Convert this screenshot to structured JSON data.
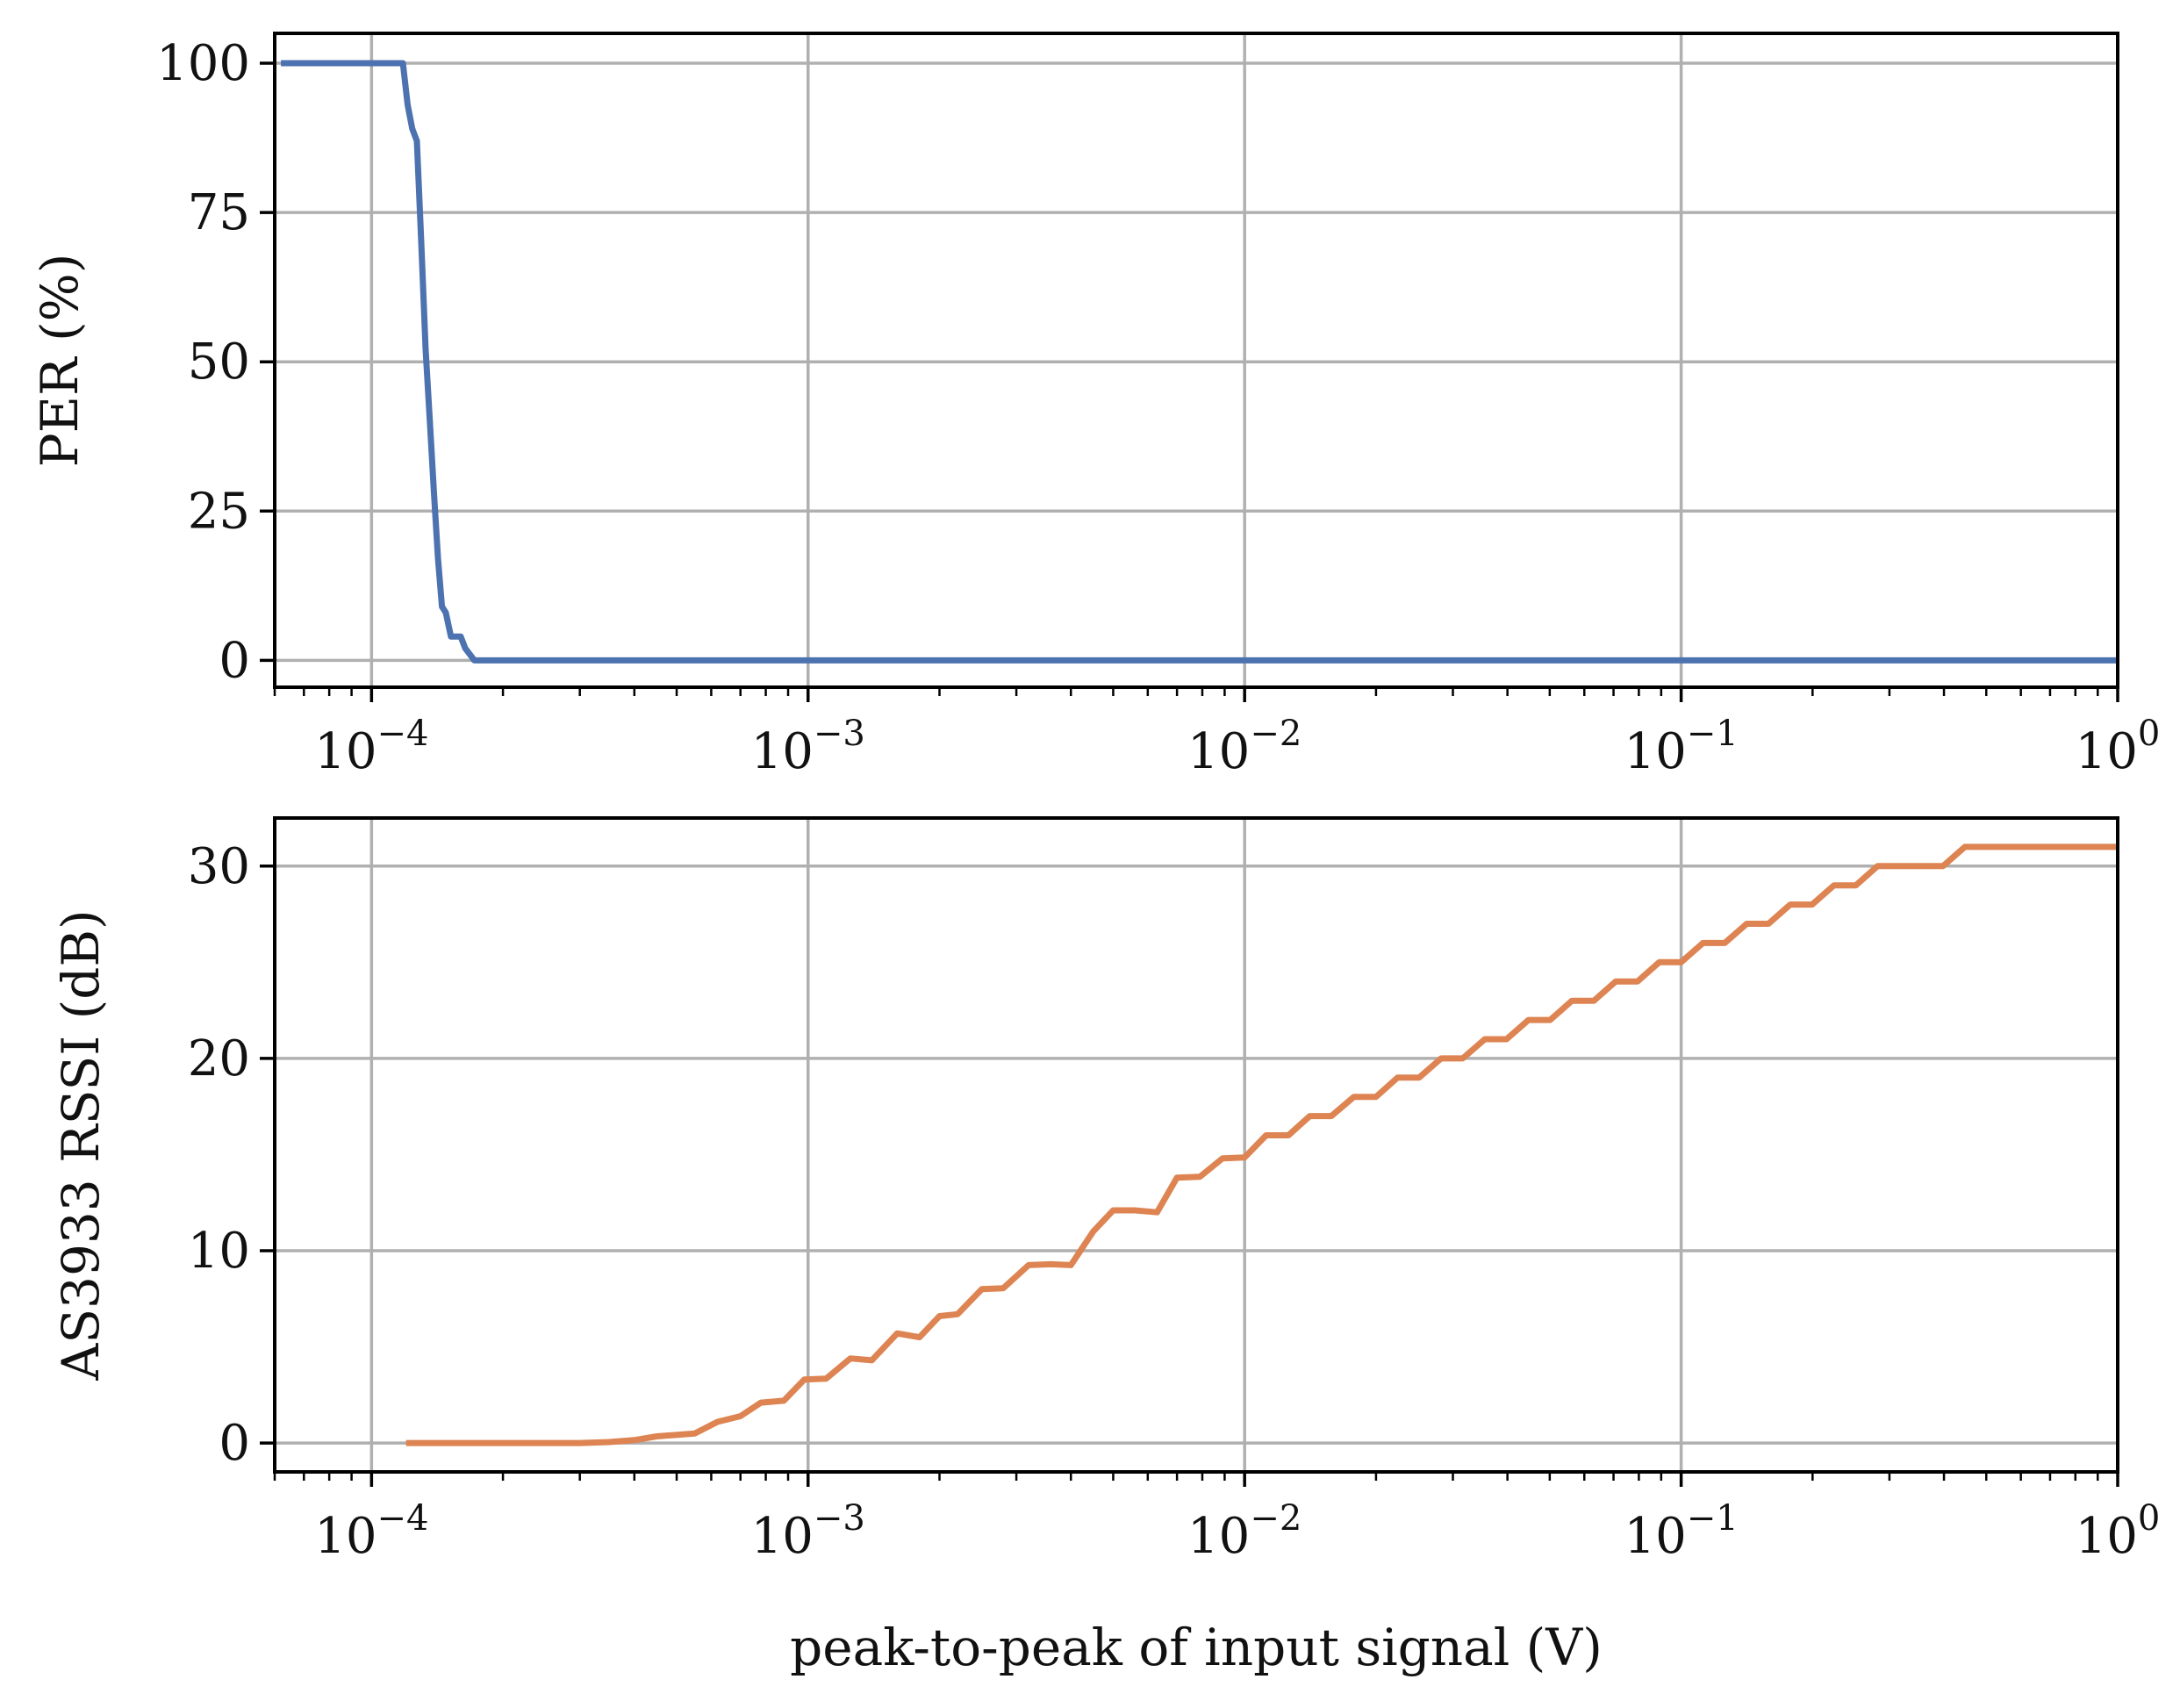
{
  "chart_data": [
    {
      "type": "line",
      "xscale": "log",
      "xlim": [
        6e-05,
        1
      ],
      "ylim": [
        -4.5,
        105
      ],
      "ylabel": "PER (%)",
      "xlabel": "",
      "grid": true,
      "yticks": [
        0,
        25,
        50,
        75,
        100
      ],
      "ytick_labels": [
        "0",
        "25",
        "50",
        "75",
        "100"
      ],
      "xtick_labels": [
        {
          "base": "10",
          "exp": "−4"
        },
        {
          "base": "10",
          "exp": "−3"
        },
        {
          "base": "10",
          "exp": "−2"
        },
        {
          "base": "10",
          "exp": "−1"
        },
        {
          "base": "10",
          "exp": "0"
        }
      ],
      "series": [
        {
          "name": "PER",
          "color": "#4c72b0",
          "x": [
            6.2e-05,
            0.0001,
            0.000118,
            0.000121,
            0.000124,
            0.000127,
            0.00013,
            0.000133,
            0.000136,
            0.000139,
            0.000142,
            0.000145,
            0.000148,
            0.000152,
            0.000156,
            0.00016,
            0.000164,
            0.000168,
            0.000172,
            0.0002,
            0.001,
            0.01,
            0.1,
            1
          ],
          "y": [
            100,
            100,
            100,
            93,
            89,
            87,
            70,
            52,
            40,
            28,
            17,
            9,
            8,
            4,
            4,
            4,
            2,
            1,
            0,
            0,
            0,
            0,
            0,
            0
          ]
        }
      ]
    },
    {
      "type": "line",
      "xscale": "log",
      "xlim": [
        6e-05,
        1
      ],
      "ylim": [
        -1.5,
        32.5
      ],
      "ylabel": "AS3933 RSSI (dB)",
      "xlabel": "peak-to-peak of input signal (V)",
      "grid": true,
      "yticks": [
        0,
        10,
        20,
        30
      ],
      "ytick_labels": [
        "0",
        "10",
        "20",
        "30"
      ],
      "xtick_labels": [
        {
          "base": "10",
          "exp": "−4"
        },
        {
          "base": "10",
          "exp": "−3"
        },
        {
          "base": "10",
          "exp": "−2"
        },
        {
          "base": "10",
          "exp": "−1"
        },
        {
          "base": "10",
          "exp": "0"
        }
      ],
      "series": [
        {
          "name": "AS3933 RSSI",
          "color": "#dd8452",
          "x": [
            0.00012,
            0.0003,
            0.00035,
            0.0004,
            0.00045,
            0.00055,
            0.00062,
            0.0007,
            0.00078,
            0.00088,
            0.00098,
            0.0011,
            0.00125,
            0.0014,
            0.0016,
            0.0018,
            0.002,
            0.0022,
            0.0025,
            0.0028,
            0.0032,
            0.0036,
            0.004,
            0.0045,
            0.005,
            0.0056,
            0.0063,
            0.007,
            0.0079,
            0.0089,
            0.01,
            0.0112,
            0.0126,
            0.0141,
            0.0158,
            0.0178,
            0.02,
            0.0224,
            0.0251,
            0.0282,
            0.0316,
            0.0355,
            0.0398,
            0.0447,
            0.0501,
            0.0562,
            0.0631,
            0.0708,
            0.0794,
            0.0891,
            0.1,
            0.1122,
            0.1259,
            0.1413,
            0.1585,
            0.1778,
            0.1995,
            0.2239,
            0.2512,
            0.2818,
            0.3162,
            0.3548,
            0.3981,
            0.4467,
            0.6,
            1
          ],
          "y": [
            0,
            0,
            0.05,
            0.15,
            0.35,
            0.5,
            1.1,
            1.4,
            2.1,
            2.2,
            3.3,
            3.35,
            4.4,
            4.3,
            5.7,
            5.5,
            6.6,
            6.7,
            8.0,
            8.05,
            9.25,
            9.3,
            9.25,
            11.0,
            12.1,
            12.1,
            12.0,
            13.8,
            13.85,
            14.8,
            14.85,
            16.0,
            16.0,
            17.0,
            17.0,
            18.0,
            18.0,
            19.0,
            19.0,
            20.0,
            20.0,
            21.0,
            21.0,
            22.0,
            22.0,
            23.0,
            23.0,
            24.0,
            24.0,
            25.0,
            25.0,
            26.0,
            26.0,
            27.0,
            27.0,
            28.0,
            28.0,
            29.0,
            29.0,
            30.0,
            30.0,
            30.0,
            30.0,
            31.0,
            31.0,
            31.0
          ]
        }
      ]
    }
  ]
}
